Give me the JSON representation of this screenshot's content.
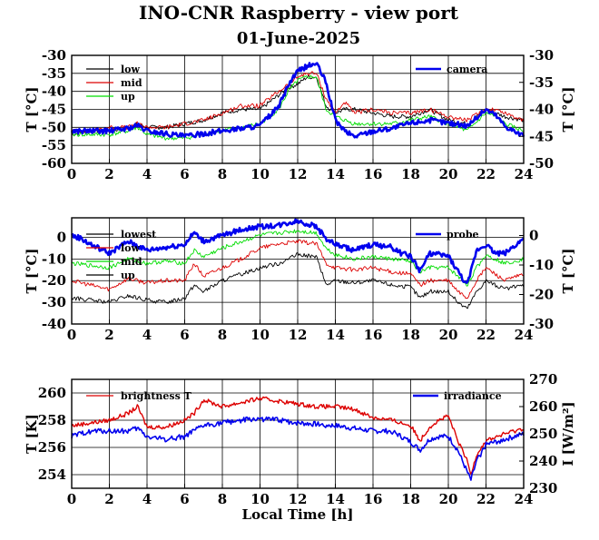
{
  "title": "INO-CNR Raspberry - view port",
  "subtitle": "01-June-2025",
  "xlabel": "Local Time [h]",
  "colors": {
    "black": "#000000",
    "red": "#dd0000",
    "green": "#00dd00",
    "blue": "#0000ee"
  },
  "chart_data": [
    {
      "type": "line",
      "xlim": [
        0,
        24
      ],
      "xticks": [
        "0",
        "2",
        "4",
        "6",
        "8",
        "10",
        "12",
        "14",
        "16",
        "18",
        "20",
        "22",
        "24"
      ],
      "ylabel": "T [°C]",
      "ylim": [
        -60,
        -30
      ],
      "yticks": [
        "-60",
        "-55",
        "-50",
        "-45",
        "-40",
        "-35",
        "-30"
      ],
      "y2label": "T [°C]",
      "y2lim": [
        -50,
        -30
      ],
      "y2ticks": [
        "-50",
        "-45",
        "-40",
        "-35",
        "-30"
      ],
      "grid": true,
      "legend_left": [
        "low",
        "mid",
        "up"
      ],
      "legend_right": [
        "camera"
      ],
      "series": [
        {
          "name": "low",
          "color": "#000000",
          "axis": "left",
          "x": [
            0,
            1,
            2,
            3,
            3.5,
            4,
            5,
            6,
            7,
            8,
            9,
            10,
            11,
            11.5,
            12,
            12.5,
            13,
            13.5,
            14,
            14.5,
            15,
            16,
            17,
            18,
            19,
            20,
            21,
            22,
            22.5,
            23,
            24
          ],
          "y": [
            -52,
            -51,
            -51,
            -50,
            -49,
            -50,
            -50,
            -49,
            -48,
            -46,
            -45,
            -45,
            -41,
            -39,
            -38,
            -36,
            -36,
            -44,
            -46,
            -45,
            -45,
            -46,
            -47,
            -47,
            -45,
            -48,
            -49,
            -45,
            -46,
            -47,
            -48
          ]
        },
        {
          "name": "mid",
          "color": "#dd0000",
          "axis": "left",
          "x": [
            0,
            1,
            2,
            3,
            3.5,
            4,
            5,
            6,
            7,
            8,
            9,
            10,
            11,
            11.5,
            12,
            12.5,
            13,
            13.5,
            14,
            14.5,
            15,
            16,
            17,
            18,
            19,
            20,
            21,
            22,
            22.5,
            23,
            24
          ],
          "y": [
            -51,
            -51,
            -50,
            -50,
            -49,
            -50,
            -50,
            -49,
            -48,
            -46,
            -44,
            -44,
            -40,
            -38,
            -36,
            -35,
            -35,
            -42,
            -46,
            -43,
            -46,
            -45,
            -46,
            -46,
            -45,
            -47,
            -48,
            -45,
            -45,
            -46,
            -48
          ]
        },
        {
          "name": "up",
          "color": "#00dd00",
          "axis": "left",
          "x": [
            0,
            1,
            2,
            3,
            3.5,
            4,
            5,
            6,
            7,
            8,
            9,
            10,
            11,
            11.5,
            12,
            12.5,
            13,
            13.5,
            14,
            14.5,
            15,
            16,
            17,
            18,
            19,
            20,
            21,
            22,
            22.5,
            23,
            24
          ],
          "y": [
            -52,
            -52,
            -52,
            -51,
            -50,
            -52,
            -53,
            -53,
            -52,
            -51,
            -50,
            -49,
            -45,
            -40,
            -37,
            -36,
            -36,
            -45,
            -47,
            -48,
            -49,
            -49,
            -49,
            -48,
            -47,
            -49,
            -51,
            -46,
            -47,
            -49,
            -51
          ]
        },
        {
          "name": "camera",
          "color": "#0000ee",
          "axis": "right",
          "x": [
            0,
            1,
            2,
            3,
            3.5,
            4,
            5,
            6,
            7,
            8,
            9,
            10,
            11,
            11.5,
            12,
            12.5,
            13,
            13.5,
            14,
            14.5,
            15,
            16,
            17,
            18,
            19,
            20,
            21,
            22,
            22.5,
            23,
            24
          ],
          "y": [
            -44,
            -44,
            -44,
            -43.5,
            -43,
            -44,
            -44.5,
            -45,
            -44.5,
            -44,
            -43.5,
            -43,
            -39.5,
            -35.5,
            -33,
            -32,
            -31.5,
            -35,
            -42,
            -44,
            -45,
            -44,
            -43.5,
            -42.5,
            -42,
            -42.5,
            -43,
            -40,
            -41,
            -43,
            -45
          ]
        }
      ]
    },
    {
      "type": "line",
      "xlim": [
        0,
        24
      ],
      "xticks": [
        "0",
        "2",
        "4",
        "6",
        "8",
        "10",
        "12",
        "14",
        "16",
        "18",
        "20",
        "22",
        "24"
      ],
      "ylabel": "T [°C]",
      "ylim": [
        -40,
        9
      ],
      "yticks": [
        "-40",
        "-30",
        "-20",
        "-10",
        "0"
      ],
      "y2label": "T [°C]",
      "y2lim": [
        -30,
        6
      ],
      "y2ticks": [
        "-30",
        "-20",
        "-10",
        "0"
      ],
      "grid": true,
      "legend_left": [
        "lowest",
        "low",
        "mid",
        "up"
      ],
      "legend_right": [
        "probe"
      ],
      "series": [
        {
          "name": "lowest",
          "color": "#000000",
          "axis": "left",
          "x": [
            0,
            1,
            2,
            3,
            4,
            5,
            6,
            6.5,
            7,
            8,
            9,
            10,
            11,
            12,
            13,
            13.5,
            14,
            15,
            16,
            17,
            18,
            18.5,
            19,
            20,
            20.5,
            21,
            21.5,
            22,
            23,
            24
          ],
          "y": [
            -28,
            -29,
            -30,
            -27,
            -29,
            -30,
            -28,
            -22,
            -25,
            -20,
            -17,
            -14,
            -12,
            -8,
            -9,
            -22,
            -20,
            -21,
            -20,
            -22,
            -23,
            -28,
            -25,
            -25,
            -30,
            -33,
            -25,
            -20,
            -24,
            -22
          ]
        },
        {
          "name": "low",
          "color": "#dd0000",
          "axis": "left",
          "x": [
            0,
            1,
            2,
            3,
            4,
            5,
            6,
            6.5,
            7,
            8,
            9,
            10,
            11,
            12,
            13,
            13.5,
            14,
            15,
            16,
            17,
            18,
            18.5,
            19,
            20,
            20.5,
            21,
            21.5,
            22,
            23,
            24
          ],
          "y": [
            -20,
            -22,
            -24,
            -19,
            -21,
            -20,
            -20,
            -12,
            -18,
            -14,
            -10,
            -5,
            -3,
            -2,
            -3,
            -12,
            -14,
            -15,
            -14,
            -16,
            -17,
            -22,
            -20,
            -20,
            -25,
            -28,
            -20,
            -14,
            -20,
            -17
          ]
        },
        {
          "name": "mid",
          "color": "#00dd00",
          "axis": "left",
          "x": [
            0,
            1,
            2,
            3,
            4,
            5,
            6,
            6.5,
            7,
            8,
            9,
            10,
            11,
            12,
            13,
            13.5,
            14,
            15,
            16,
            17,
            18,
            18.5,
            19,
            20,
            20.5,
            21,
            21.5,
            22,
            23,
            24
          ],
          "y": [
            -12,
            -13,
            -14,
            -10,
            -12,
            -11,
            -12,
            -6,
            -9,
            -5,
            -2,
            1,
            2,
            3,
            2,
            -5,
            -8,
            -10,
            -9,
            -10,
            -11,
            -16,
            -14,
            -14,
            -18,
            -22,
            -14,
            -8,
            -12,
            -10
          ]
        },
        {
          "name": "probe",
          "color": "#0000ee",
          "axis": "right",
          "x": [
            0,
            0.5,
            1,
            2,
            3,
            4,
            5,
            6,
            6.5,
            7,
            8,
            9,
            10,
            11,
            12,
            13,
            13.5,
            14,
            15,
            16,
            17,
            17.5,
            18,
            18.5,
            19,
            20,
            20.5,
            21,
            21.5,
            22,
            22.5,
            23,
            24
          ],
          "y": [
            0,
            -1,
            -3,
            -6,
            -2,
            -5,
            -4,
            -3,
            1,
            -2,
            0,
            2,
            3,
            3.5,
            5,
            3,
            -1,
            -3,
            -5,
            -3,
            -4,
            -6,
            -7,
            -12,
            -6,
            -7,
            -12,
            -17,
            -5,
            -3,
            -6,
            -6,
            -1
          ]
        }
      ]
    },
    {
      "type": "line",
      "xlim": [
        0,
        24
      ],
      "xticks": [
        "0",
        "2",
        "4",
        "6",
        "8",
        "10",
        "12",
        "14",
        "16",
        "18",
        "20",
        "22",
        "24"
      ],
      "ylabel": "T [K]",
      "ylim": [
        253,
        261
      ],
      "yticks": [
        "254",
        "256",
        "258",
        "260"
      ],
      "y2label": "I [W/m²]",
      "y2lim": [
        230,
        270
      ],
      "y2ticks": [
        "230",
        "240",
        "250",
        "260",
        "270"
      ],
      "grid": true,
      "legend_left": [
        "brightness T"
      ],
      "legend_right": [
        "irradiance"
      ],
      "series": [
        {
          "name": "brightness T",
          "color": "#dd0000",
          "axis": "left",
          "x": [
            0,
            1,
            2,
            3,
            3.5,
            4,
            5,
            6,
            6.5,
            7,
            8,
            9,
            10,
            11,
            12,
            13,
            14,
            15,
            16,
            17,
            18,
            18.5,
            19,
            19.5,
            20,
            20.5,
            21,
            21.2,
            21.5,
            22,
            23,
            24
          ],
          "y": [
            257.6,
            257.8,
            258,
            258.5,
            259,
            257.5,
            257.5,
            258,
            258.5,
            259.5,
            259,
            259.3,
            259.6,
            259.4,
            259.2,
            259,
            259,
            258.8,
            258.2,
            258,
            257.6,
            256.5,
            257.5,
            258,
            258.3,
            256.5,
            255,
            254,
            255.5,
            256.5,
            257,
            257.4
          ]
        },
        {
          "name": "irradiance",
          "color": "#0000ee",
          "axis": "right",
          "x": [
            0,
            1,
            2,
            3,
            3.5,
            4,
            5,
            6,
            6.5,
            7,
            8,
            9,
            10,
            11,
            12,
            13,
            14,
            15,
            16,
            17,
            18,
            18.5,
            19,
            19.5,
            20,
            20.5,
            21,
            21.2,
            21.5,
            22,
            23,
            24
          ],
          "y": [
            249,
            251,
            251,
            251,
            252,
            249,
            248,
            249,
            251,
            253,
            254,
            255,
            255.5,
            255,
            254,
            253.5,
            253,
            252,
            251,
            251,
            247,
            244,
            248,
            249,
            249,
            244,
            236,
            233,
            240,
            246,
            248,
            250
          ]
        }
      ]
    }
  ]
}
